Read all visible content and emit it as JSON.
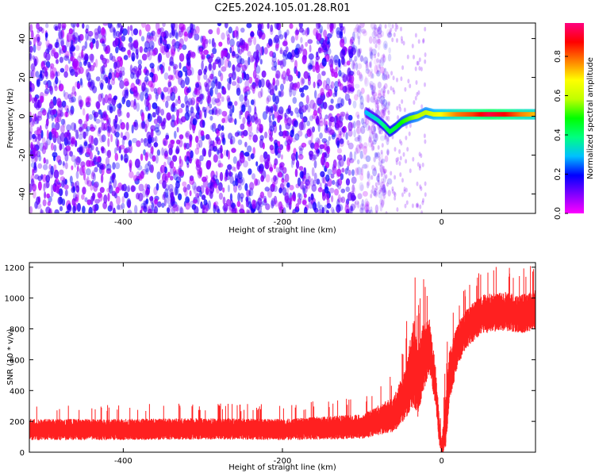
{
  "title": "C2E5.2024.105.01.28.R01",
  "chart_data": [
    {
      "type": "heatmap",
      "xlabel": "Height of straight line (km)",
      "ylabel": "Frequency (Hz)",
      "xlim": [
        -518,
        118
      ],
      "ylim": [
        -50,
        48
      ],
      "x_ticks": [
        -400,
        -200,
        0
      ],
      "y_ticks": [
        -40,
        -20,
        0,
        20,
        40
      ],
      "colorbar": {
        "label": "Normalized spectral amplitude",
        "range": [
          0,
          0.97
        ],
        "ticks": [
          0.0,
          0.2,
          0.4,
          0.6,
          0.8
        ],
        "colormap": [
          "#ff00ff",
          "#8000ff",
          "#0000ff",
          "#00c0ff",
          "#00ff80",
          "#00ff00",
          "#c0ff00",
          "#ffff00",
          "#ff8000",
          "#ff0000",
          "#ff0080"
        ]
      },
      "ridge": {
        "x": [
          -95,
          -80,
          -72,
          -65,
          -58,
          -50,
          -40,
          -30,
          -20,
          -10,
          0,
          20,
          40,
          60,
          80,
          100,
          118
        ],
        "y": [
          2,
          -2,
          -5,
          -8,
          -6,
          -3,
          -1,
          0,
          2,
          1,
          1,
          1,
          1,
          1,
          1,
          1,
          1
        ],
        "amplitude": [
          0.3,
          0.35,
          0.4,
          0.45,
          0.45,
          0.5,
          0.55,
          0.6,
          0.6,
          0.65,
          0.7,
          0.8,
          0.85,
          0.95,
          0.9,
          0.8,
          0.75
        ]
      },
      "noise_region": {
        "x": [
          -518,
          -90
        ],
        "amplitude_range": [
          0.05,
          0.2
        ]
      }
    },
    {
      "type": "line",
      "xlabel": "Height of straight line (km)",
      "ylabel": "SNR (10 * v/v)",
      "xlim": [
        -518,
        118
      ],
      "ylim": [
        0,
        1230
      ],
      "x_ticks": [
        -400,
        -200,
        0
      ],
      "y_ticks": [
        0,
        200,
        400,
        600,
        800,
        1000,
        1200
      ],
      "color": "#ff2020",
      "series": [
        {
          "x": [
            -518,
            -400,
            -300,
            -200,
            -100,
            -60,
            -45,
            -35,
            -30,
            -25,
            -15,
            -8,
            -3,
            0,
            5,
            10,
            20,
            30,
            50,
            80,
            100,
            118
          ],
          "y": [
            150,
            150,
            155,
            150,
            170,
            250,
            400,
            600,
            450,
            600,
            700,
            450,
            150,
            30,
            200,
            500,
            700,
            800,
            900,
            920,
            900,
            930
          ],
          "spread": [
            60,
            60,
            60,
            60,
            70,
            100,
            150,
            250,
            200,
            200,
            150,
            120,
            80,
            40,
            150,
            150,
            120,
            110,
            110,
            110,
            110,
            110
          ]
        }
      ]
    }
  ]
}
